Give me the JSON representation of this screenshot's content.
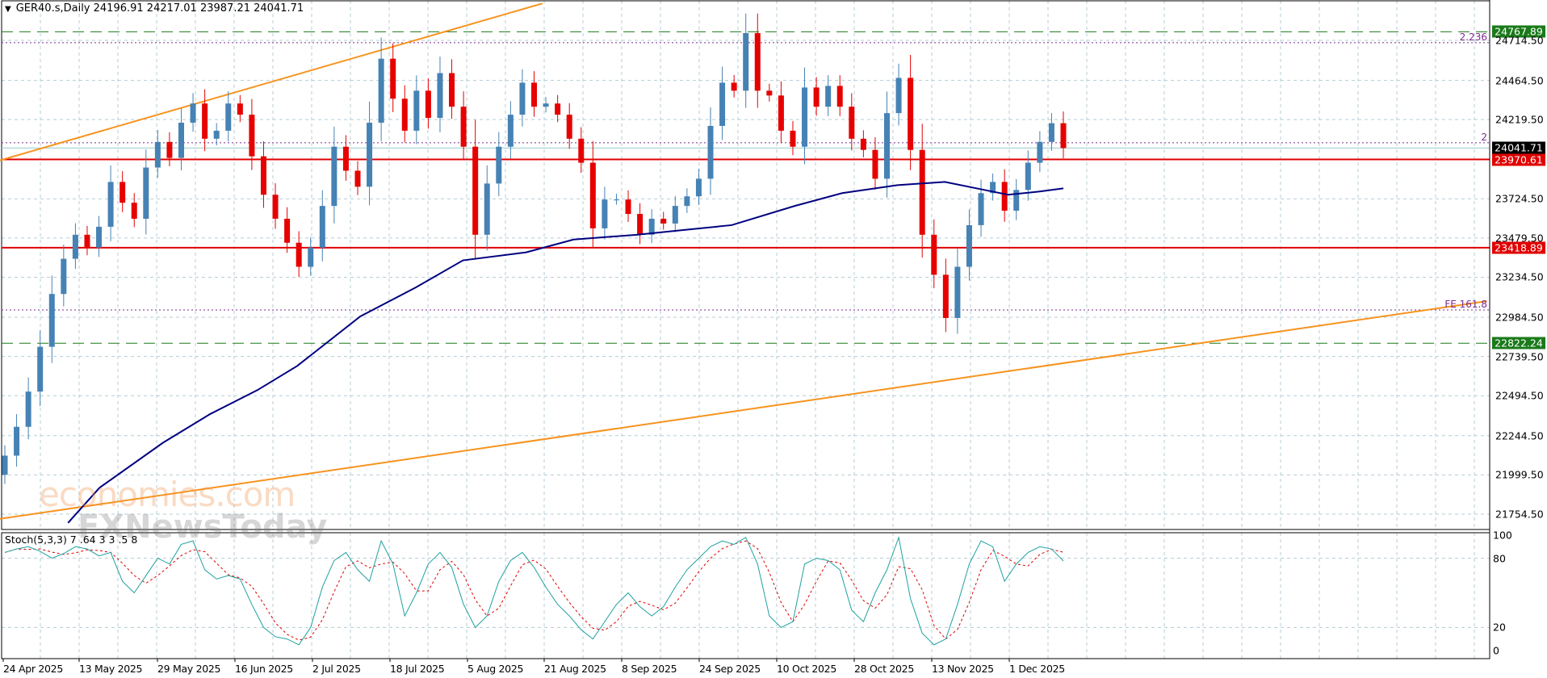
{
  "header": {
    "symbol": "GER40.s,Daily",
    "ohlc": "24196.91 24217.01 23987.21 24041.71"
  },
  "watermark": {
    "brand": "economies.com",
    "sub": "FXNewsToday"
  },
  "colors": {
    "bull": "#4682b4",
    "bear": "#e60000",
    "ma": "#000080",
    "trendline": "#f7931e",
    "support_resistance": "#e00000",
    "target": "#1a7a1a",
    "fib": "#7b2c8f",
    "grid": "#b4cdd6",
    "stoch_main": "#20a0a0",
    "stoch_signal": "#e00000"
  },
  "chart_data": [
    {
      "type": "candlestick",
      "title": "GER40.s,Daily",
      "y_ticks": [
        "24714.50",
        "24464.50",
        "24219.50",
        "23724.50",
        "23479.50",
        "23234.50",
        "22984.50",
        "22739.50",
        "22494.50",
        "22244.50",
        "21999.50",
        "21754.50"
      ],
      "x_ticks": [
        "24 Apr 2025",
        "13 May 2025",
        "29 May 2025",
        "16 Jun 2025",
        "2 Jul 2025",
        "18 Jul 2025",
        "5 Aug 2025",
        "21 Aug 2025",
        "8 Sep 2025",
        "24 Sep 2025",
        "10 Oct 2025",
        "28 Oct 2025",
        "13 Nov 2025",
        "1 Dec 2025"
      ],
      "ylim": [
        21650,
        24950
      ],
      "grid": true,
      "close": [
        22120,
        22300,
        22520,
        22800,
        23130,
        23350,
        23500,
        23420,
        23550,
        23830,
        23700,
        23600,
        23920,
        24080,
        23980,
        24200,
        24320,
        24100,
        24150,
        24320,
        24250,
        23990,
        23750,
        23600,
        23450,
        23300,
        23420,
        23680,
        24050,
        23900,
        23800,
        24200,
        24600,
        24350,
        24150,
        24400,
        24230,
        24510,
        24300,
        24050,
        23500,
        23820,
        24050,
        24250,
        24450,
        24300,
        24320,
        24250,
        24100,
        23950,
        23540,
        23720,
        23720,
        23630,
        23500,
        23600,
        23570,
        23680,
        23740,
        23850,
        24180,
        24450,
        24400,
        24760,
        24400,
        24370,
        24150,
        24050,
        24420,
        24300,
        24430,
        24300,
        24100,
        24030,
        23850,
        24260,
        24480,
        24030,
        23500,
        23250,
        22980,
        23300,
        23560,
        23760,
        23830,
        23650,
        23780,
        23950,
        24080,
        24196.91,
        24041.71
      ],
      "moving_average": [
        [
          8,
          21700
        ],
        [
          12,
          21920
        ],
        [
          20,
          22200
        ],
        [
          26,
          22380
        ],
        [
          32,
          22530
        ],
        [
          37,
          22680
        ],
        [
          45,
          22990
        ],
        [
          52,
          23170
        ],
        [
          58,
          23340
        ],
        [
          66,
          23390
        ],
        [
          72,
          23470
        ],
        [
          80,
          23500
        ],
        [
          86,
          23530
        ],
        [
          92,
          23560
        ],
        [
          100,
          23680
        ],
        [
          106,
          23760
        ],
        [
          113,
          23810
        ],
        [
          119,
          23830
        ],
        [
          124,
          23780
        ],
        [
          127,
          23750
        ],
        [
          131,
          23770
        ],
        [
          134,
          23790
        ]
      ],
      "price_lines": [
        {
          "label": "24767.89",
          "price": 24767.89,
          "style": "target"
        },
        {
          "label": "24041.71",
          "price": 24041.71,
          "style": "current"
        },
        {
          "label": "23970.61",
          "price": 23970.61,
          "style": "support_resistance"
        },
        {
          "label": "23418.89",
          "price": 23418.89,
          "style": "support_resistance"
        },
        {
          "label": "22822.24",
          "price": 22822.24,
          "style": "target"
        }
      ],
      "fib_levels": [
        {
          "label": "2.236",
          "price": 24700
        },
        {
          "label": "2",
          "price": 24075
        },
        {
          "label": "FE 161.8",
          "price": 23030
        }
      ],
      "trendlines": [
        {
          "from": [
            0,
            23965
          ],
          "to": [
            45.7,
            24945
          ]
        },
        {
          "from": [
            0,
            21725
          ],
          "to": [
            126,
            23085
          ]
        }
      ]
    },
    {
      "type": "line",
      "title": "Stoch(5,3,3) 7 .64 3 3 .5 8",
      "y_ticks": [
        "100",
        "80",
        "20",
        "0"
      ],
      "ylim": [
        0,
        100
      ],
      "levels": [
        80,
        20
      ],
      "k": [
        85,
        88,
        90,
        86,
        80,
        84,
        90,
        88,
        82,
        85,
        60,
        50,
        65,
        80,
        75,
        92,
        95,
        70,
        62,
        65,
        62,
        40,
        20,
        12,
        10,
        5,
        20,
        55,
        78,
        85,
        70,
        60,
        95,
        75,
        30,
        50,
        75,
        85,
        72,
        40,
        20,
        30,
        60,
        78,
        85,
        72,
        55,
        40,
        30,
        18,
        10,
        25,
        40,
        50,
        38,
        30,
        38,
        55,
        70,
        80,
        90,
        95,
        92,
        98,
        75,
        30,
        20,
        25,
        75,
        80,
        78,
        70,
        35,
        25,
        50,
        70,
        98,
        45,
        15,
        5,
        10,
        40,
        75,
        95,
        90,
        60,
        75,
        85,
        90,
        88,
        77.6
      ]
    }
  ]
}
